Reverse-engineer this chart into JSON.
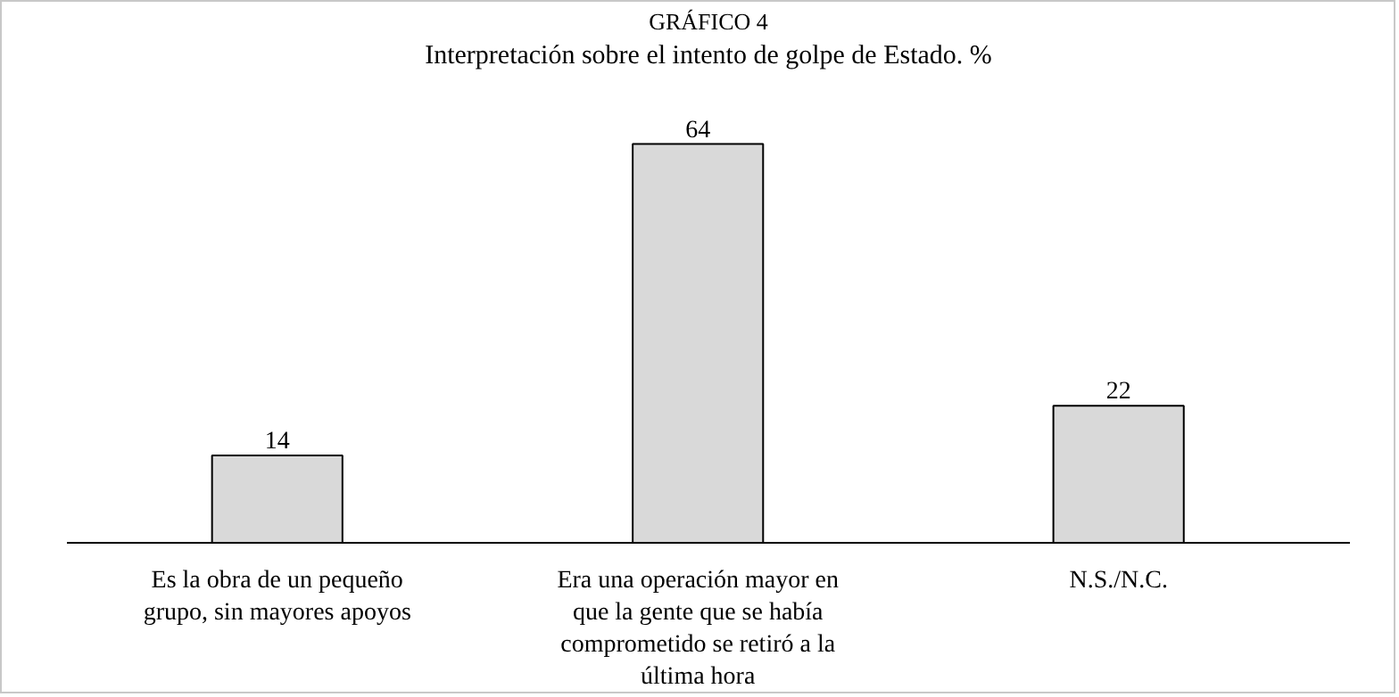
{
  "chart_data": {
    "type": "bar",
    "title": "GRÁFICO 4",
    "subtitle": "Interpretación sobre el intento de golpe de Estado. %",
    "categories": [
      "Es la obra de un pequeño grupo, sin mayores apoyos",
      "Era una operación mayor en que la gente que se había comprometido se retiró a la última hora",
      "N.S./N.C."
    ],
    "values": [
      14,
      64,
      22
    ],
    "color": "#d9d9d9",
    "data_labels": true,
    "grid": false
  }
}
